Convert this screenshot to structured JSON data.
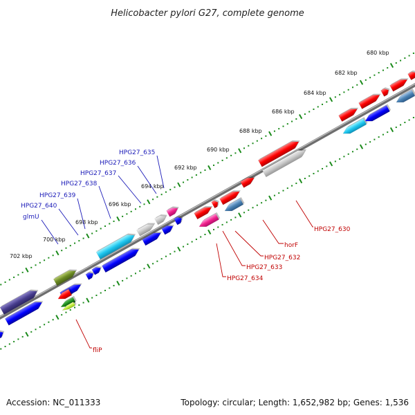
{
  "title": "Helicobacter pylori G27, complete genome",
  "footer": {
    "accession": "Accession: NC_011333",
    "summary": "Topology: circular; Length: 1,652,982 bp; Genes: 1,536"
  },
  "axis": {
    "tick_labels": [
      "680 kbp",
      "682 kbp",
      "684 kbp",
      "686 kbp",
      "688 kbp",
      "690 kbp",
      "692 kbp",
      "694 kbp",
      "696 kbp",
      "698 kbp",
      "700 kbp",
      "702 kbp"
    ]
  },
  "gene_labels_upper": [
    "HPG27_635",
    "HPG27_636",
    "HPG27_637",
    "HPG27_638",
    "HPG27_639",
    "HPG27_640",
    "glmU"
  ],
  "gene_labels_lower": [
    "HPG27_630",
    "horF",
    "HPG27_632",
    "HPG27_633",
    "HPG27_634",
    "fliP"
  ],
  "colors": {
    "backbone": "#7a7a7a",
    "tick": "#1a8a1a",
    "forward": "#ff0000",
    "reverse": "#0000ff",
    "leader_upper": "#1a1ab8",
    "leader_lower": "#c00000"
  }
}
